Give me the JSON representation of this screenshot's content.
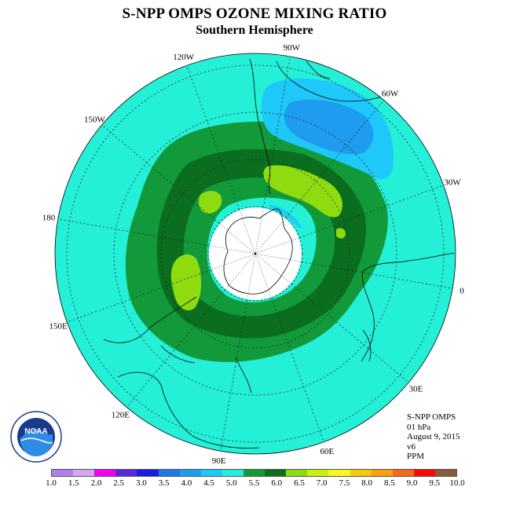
{
  "title": "S-NPP OMPS OZONE MIXING RATIO",
  "subtitle": "Southern Hemisphere",
  "longitude_labels": [
    "90W",
    "60W",
    "30W",
    "0",
    "30E",
    "60E",
    "90E",
    "120E",
    "150E",
    "180",
    "150W",
    "120W"
  ],
  "info": {
    "instrument": "S-NPP OMPS",
    "level": "01 hPa",
    "date": "August 9, 2015",
    "version": "v6",
    "units": "PPM"
  },
  "logo": {
    "text": "NOAA",
    "icon": "noaa-logo"
  },
  "colorbar": {
    "colors": [
      "#b27fe8",
      "#d4a8f0",
      "#f000f0",
      "#5a28d8",
      "#1a1ae0",
      "#1e78e8",
      "#1e9cf0",
      "#1ec8f8",
      "#24f0d8",
      "#129a3a",
      "#0a6e1e",
      "#8edc10",
      "#c8f010",
      "#f8f820",
      "#f8c810",
      "#f8a010",
      "#f86818",
      "#f80808",
      "#8a5a3a"
    ],
    "ticks": [
      "1.0",
      "1.5",
      "2.0",
      "2.5",
      "3.0",
      "3.5",
      "4.0",
      "4.5",
      "5.0",
      "5.5",
      "6.0",
      "6.5",
      "7.0",
      "7.5",
      "8.0",
      "8.5",
      "9.0",
      "9.5",
      "10.0"
    ]
  },
  "map_colors": {
    "background": "#24f0d8",
    "band_5_5": "#129a3a",
    "band_6_0": "#0a6e1e",
    "band_6_5": "#8edc10",
    "band_4_0": "#1ec8f8",
    "band_3_5": "#1e9cf0",
    "pole_mask": "#ffffff"
  }
}
